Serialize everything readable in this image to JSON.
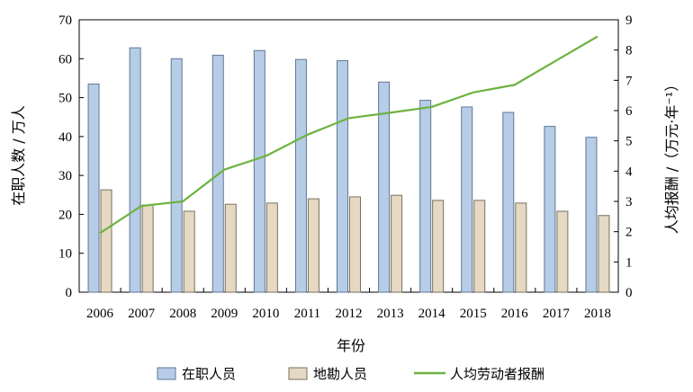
{
  "chart_data": {
    "type": "bar",
    "xlabel": "年份",
    "ylabel_left": "在职人数 / 万人",
    "ylabel_right": "人均报酬 /（万元·年⁻¹）",
    "categories": [
      "2006",
      "2007",
      "2008",
      "2009",
      "2010",
      "2011",
      "2012",
      "2013",
      "2014",
      "2015",
      "2016",
      "2017",
      "2018"
    ],
    "ylim_left": [
      0,
      70
    ],
    "yticks_left": [
      0,
      10,
      20,
      30,
      40,
      50,
      60,
      70
    ],
    "ylim_right": [
      0,
      9
    ],
    "yticks_right": [
      0,
      1,
      2,
      3,
      4,
      5,
      6,
      7,
      8,
      9
    ],
    "grid": false,
    "legend_position": "bottom",
    "series": [
      {
        "name": "在职人员",
        "kind": "bar",
        "axis": "left",
        "values": [
          53.5,
          62.8,
          60.0,
          60.9,
          62.1,
          59.8,
          59.5,
          54.0,
          49.3,
          47.6,
          46.2,
          42.6,
          39.8
        ],
        "color": "#b7cce6",
        "edge": "#5f7894"
      },
      {
        "name": "地勘人员",
        "kind": "bar",
        "axis": "left",
        "values": [
          26.3,
          22.4,
          20.8,
          22.6,
          22.9,
          24.0,
          24.5,
          24.9,
          23.6,
          23.6,
          22.9,
          20.8,
          19.7
        ],
        "color": "#e6d9c3",
        "edge": "#7a6f5f"
      },
      {
        "name": "人均劳动者报酬",
        "kind": "line",
        "axis": "right",
        "values": [
          1.95,
          2.85,
          3.0,
          4.05,
          4.5,
          5.2,
          5.75,
          5.93,
          6.12,
          6.6,
          6.85,
          7.65,
          8.45
        ],
        "color": "#6cb33f"
      }
    ]
  }
}
